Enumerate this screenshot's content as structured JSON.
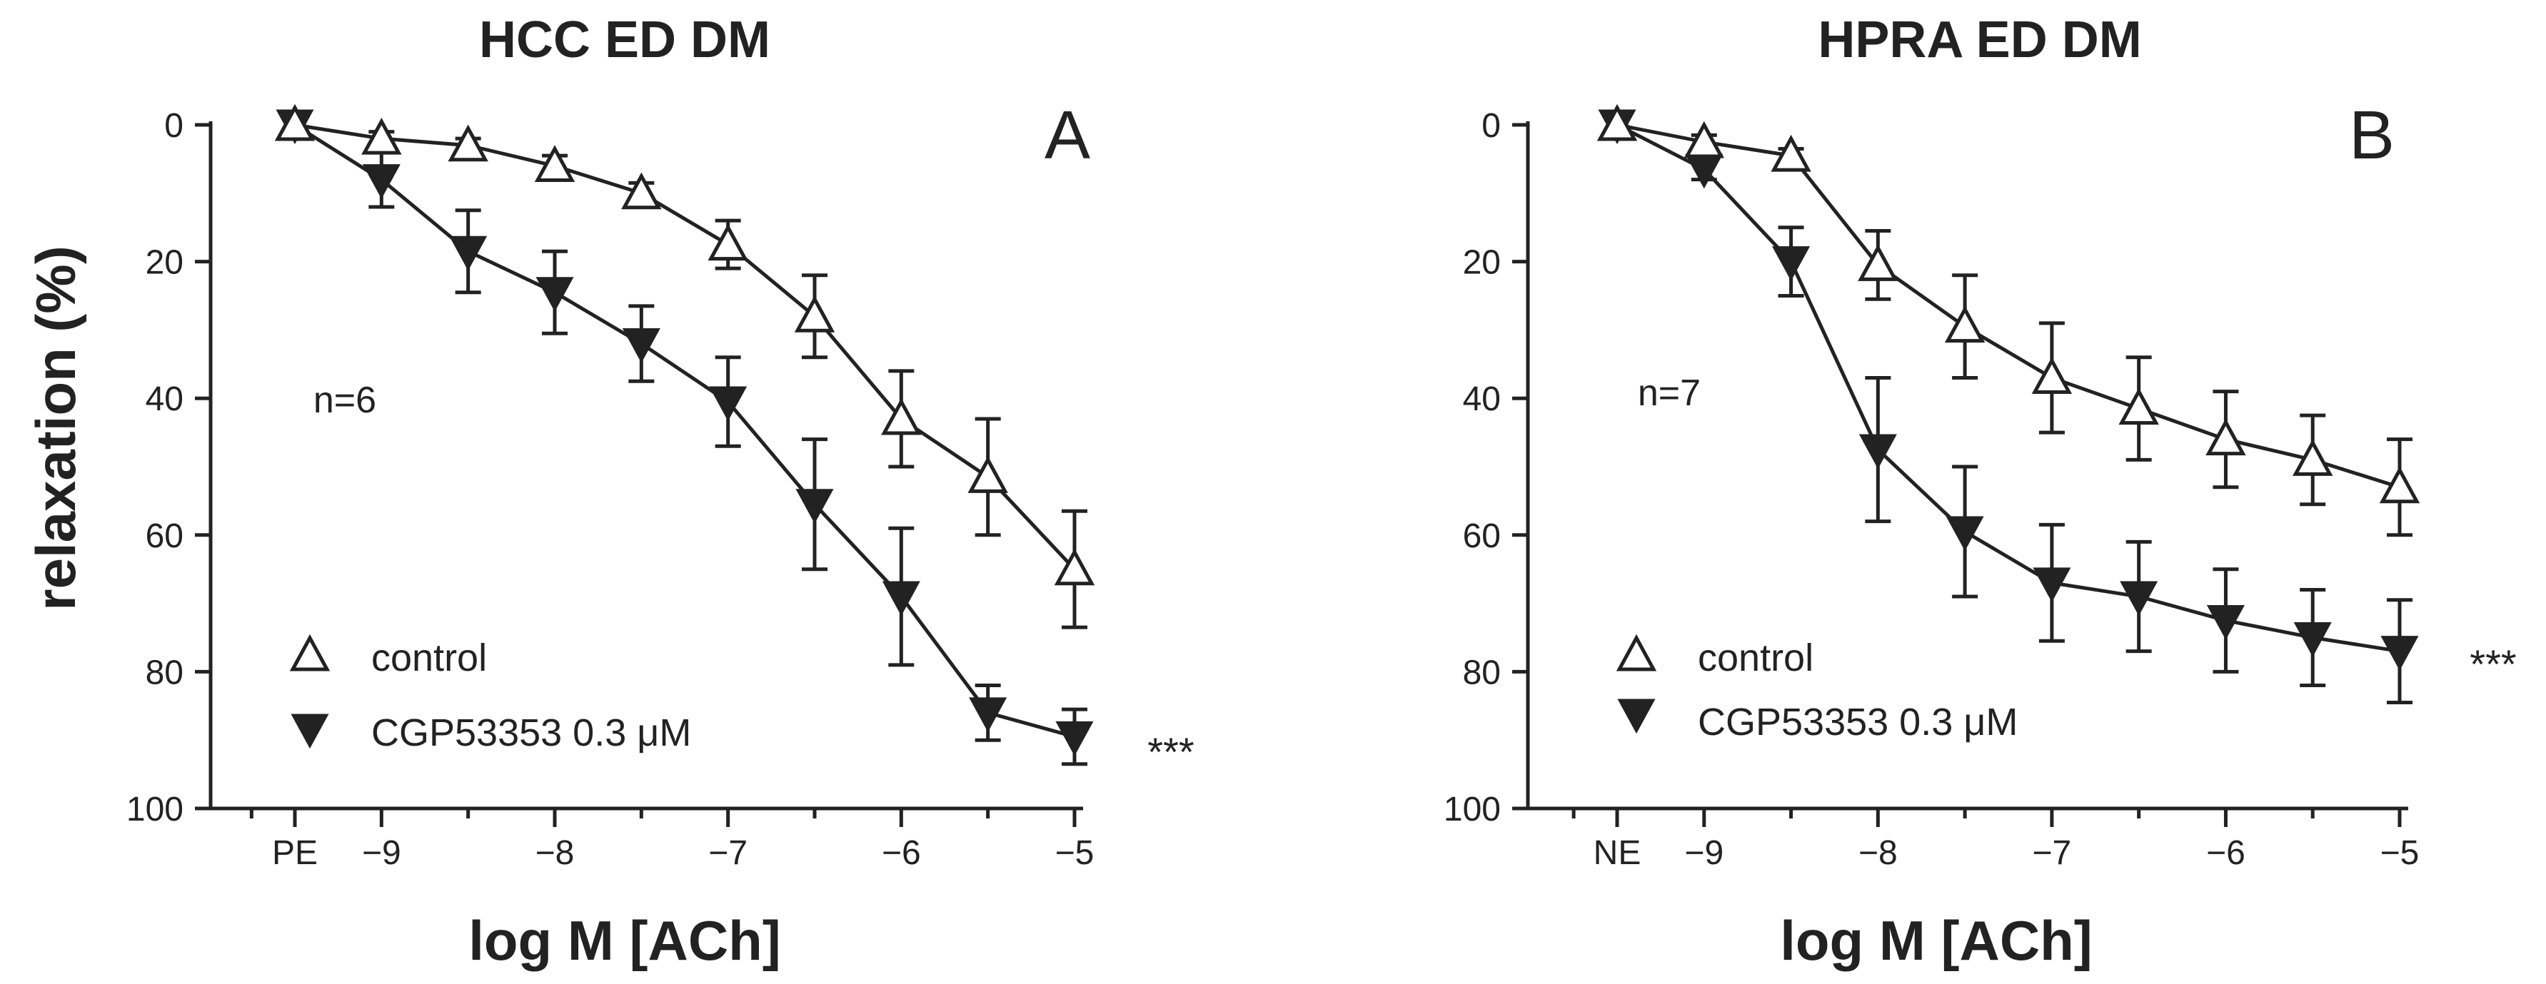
{
  "chart_data": [
    {
      "type": "line",
      "title": "HCC ED DM",
      "panel_label": "A",
      "xlabel": "log M [ACh]",
      "ylabel": "relaxation (%)",
      "ylim": [
        0,
        100
      ],
      "y_inverted": true,
      "yticks": [
        0,
        20,
        40,
        60,
        80,
        100
      ],
      "x_ticks": [
        {
          "x": -9.5,
          "label": "PE"
        },
        {
          "x": -9,
          "label": "−9"
        },
        {
          "x": -8,
          "label": "−8"
        },
        {
          "x": -7,
          "label": "−7"
        },
        {
          "x": -6,
          "label": "−6"
        },
        {
          "x": -5,
          "label": "−5"
        }
      ],
      "x": [
        -9.5,
        -9,
        -8.5,
        -8,
        -7.5,
        -7,
        -6.5,
        -6,
        -5.5,
        -5
      ],
      "series": [
        {
          "name": "control",
          "marker": "open-triangle-up",
          "values": [
            0,
            2,
            3,
            6,
            10,
            17.5,
            28,
            43,
            51.5,
            65
          ],
          "errors": [
            0,
            1,
            1,
            1.5,
            1.5,
            3.5,
            6,
            7,
            8.5,
            8.5
          ]
        },
        {
          "name": "CGP53353 0.3 μM",
          "marker": "filled-triangle-down",
          "values": [
            0,
            8,
            18.5,
            24.5,
            32,
            40.5,
            55.5,
            69,
            86,
            89.5
          ],
          "errors": [
            0,
            4,
            6,
            6,
            5.5,
            6.5,
            9.5,
            10,
            4,
            4
          ]
        }
      ],
      "annotations": {
        "n": "n=6",
        "significance": "***"
      }
    },
    {
      "type": "line",
      "title": "HPRA ED DM",
      "panel_label": "B",
      "xlabel": "log M [ACh]",
      "ylabel": "",
      "ylim": [
        0,
        100
      ],
      "y_inverted": true,
      "yticks": [
        0,
        20,
        40,
        60,
        80,
        100
      ],
      "x_ticks": [
        {
          "x": -9.5,
          "label": "NE"
        },
        {
          "x": -9,
          "label": "−9"
        },
        {
          "x": -8,
          "label": "−8"
        },
        {
          "x": -7,
          "label": "−7"
        },
        {
          "x": -6,
          "label": "−6"
        },
        {
          "x": -5,
          "label": "−5"
        }
      ],
      "x": [
        -9.5,
        -9,
        -8.5,
        -8,
        -7.5,
        -7,
        -6.5,
        -6,
        -5.5,
        -5
      ],
      "series": [
        {
          "name": "control",
          "marker": "open-triangle-up",
          "values": [
            0,
            2.5,
            4.5,
            20.5,
            29.5,
            37,
            41.5,
            46,
            49,
            53
          ],
          "errors": [
            0,
            1,
            1,
            5,
            7.5,
            8,
            7.5,
            7,
            6.5,
            7
          ]
        },
        {
          "name": "CGP53353 0.3 μM",
          "marker": "filled-triangle-down",
          "values": [
            0,
            6.5,
            20,
            47.5,
            59.5,
            67,
            69,
            72.5,
            75,
            77
          ],
          "errors": [
            0,
            1.5,
            5,
            10.5,
            9.5,
            8.5,
            8,
            7.5,
            7,
            7.5
          ]
        }
      ],
      "annotations": {
        "n": "n=7",
        "significance": "***"
      }
    }
  ]
}
